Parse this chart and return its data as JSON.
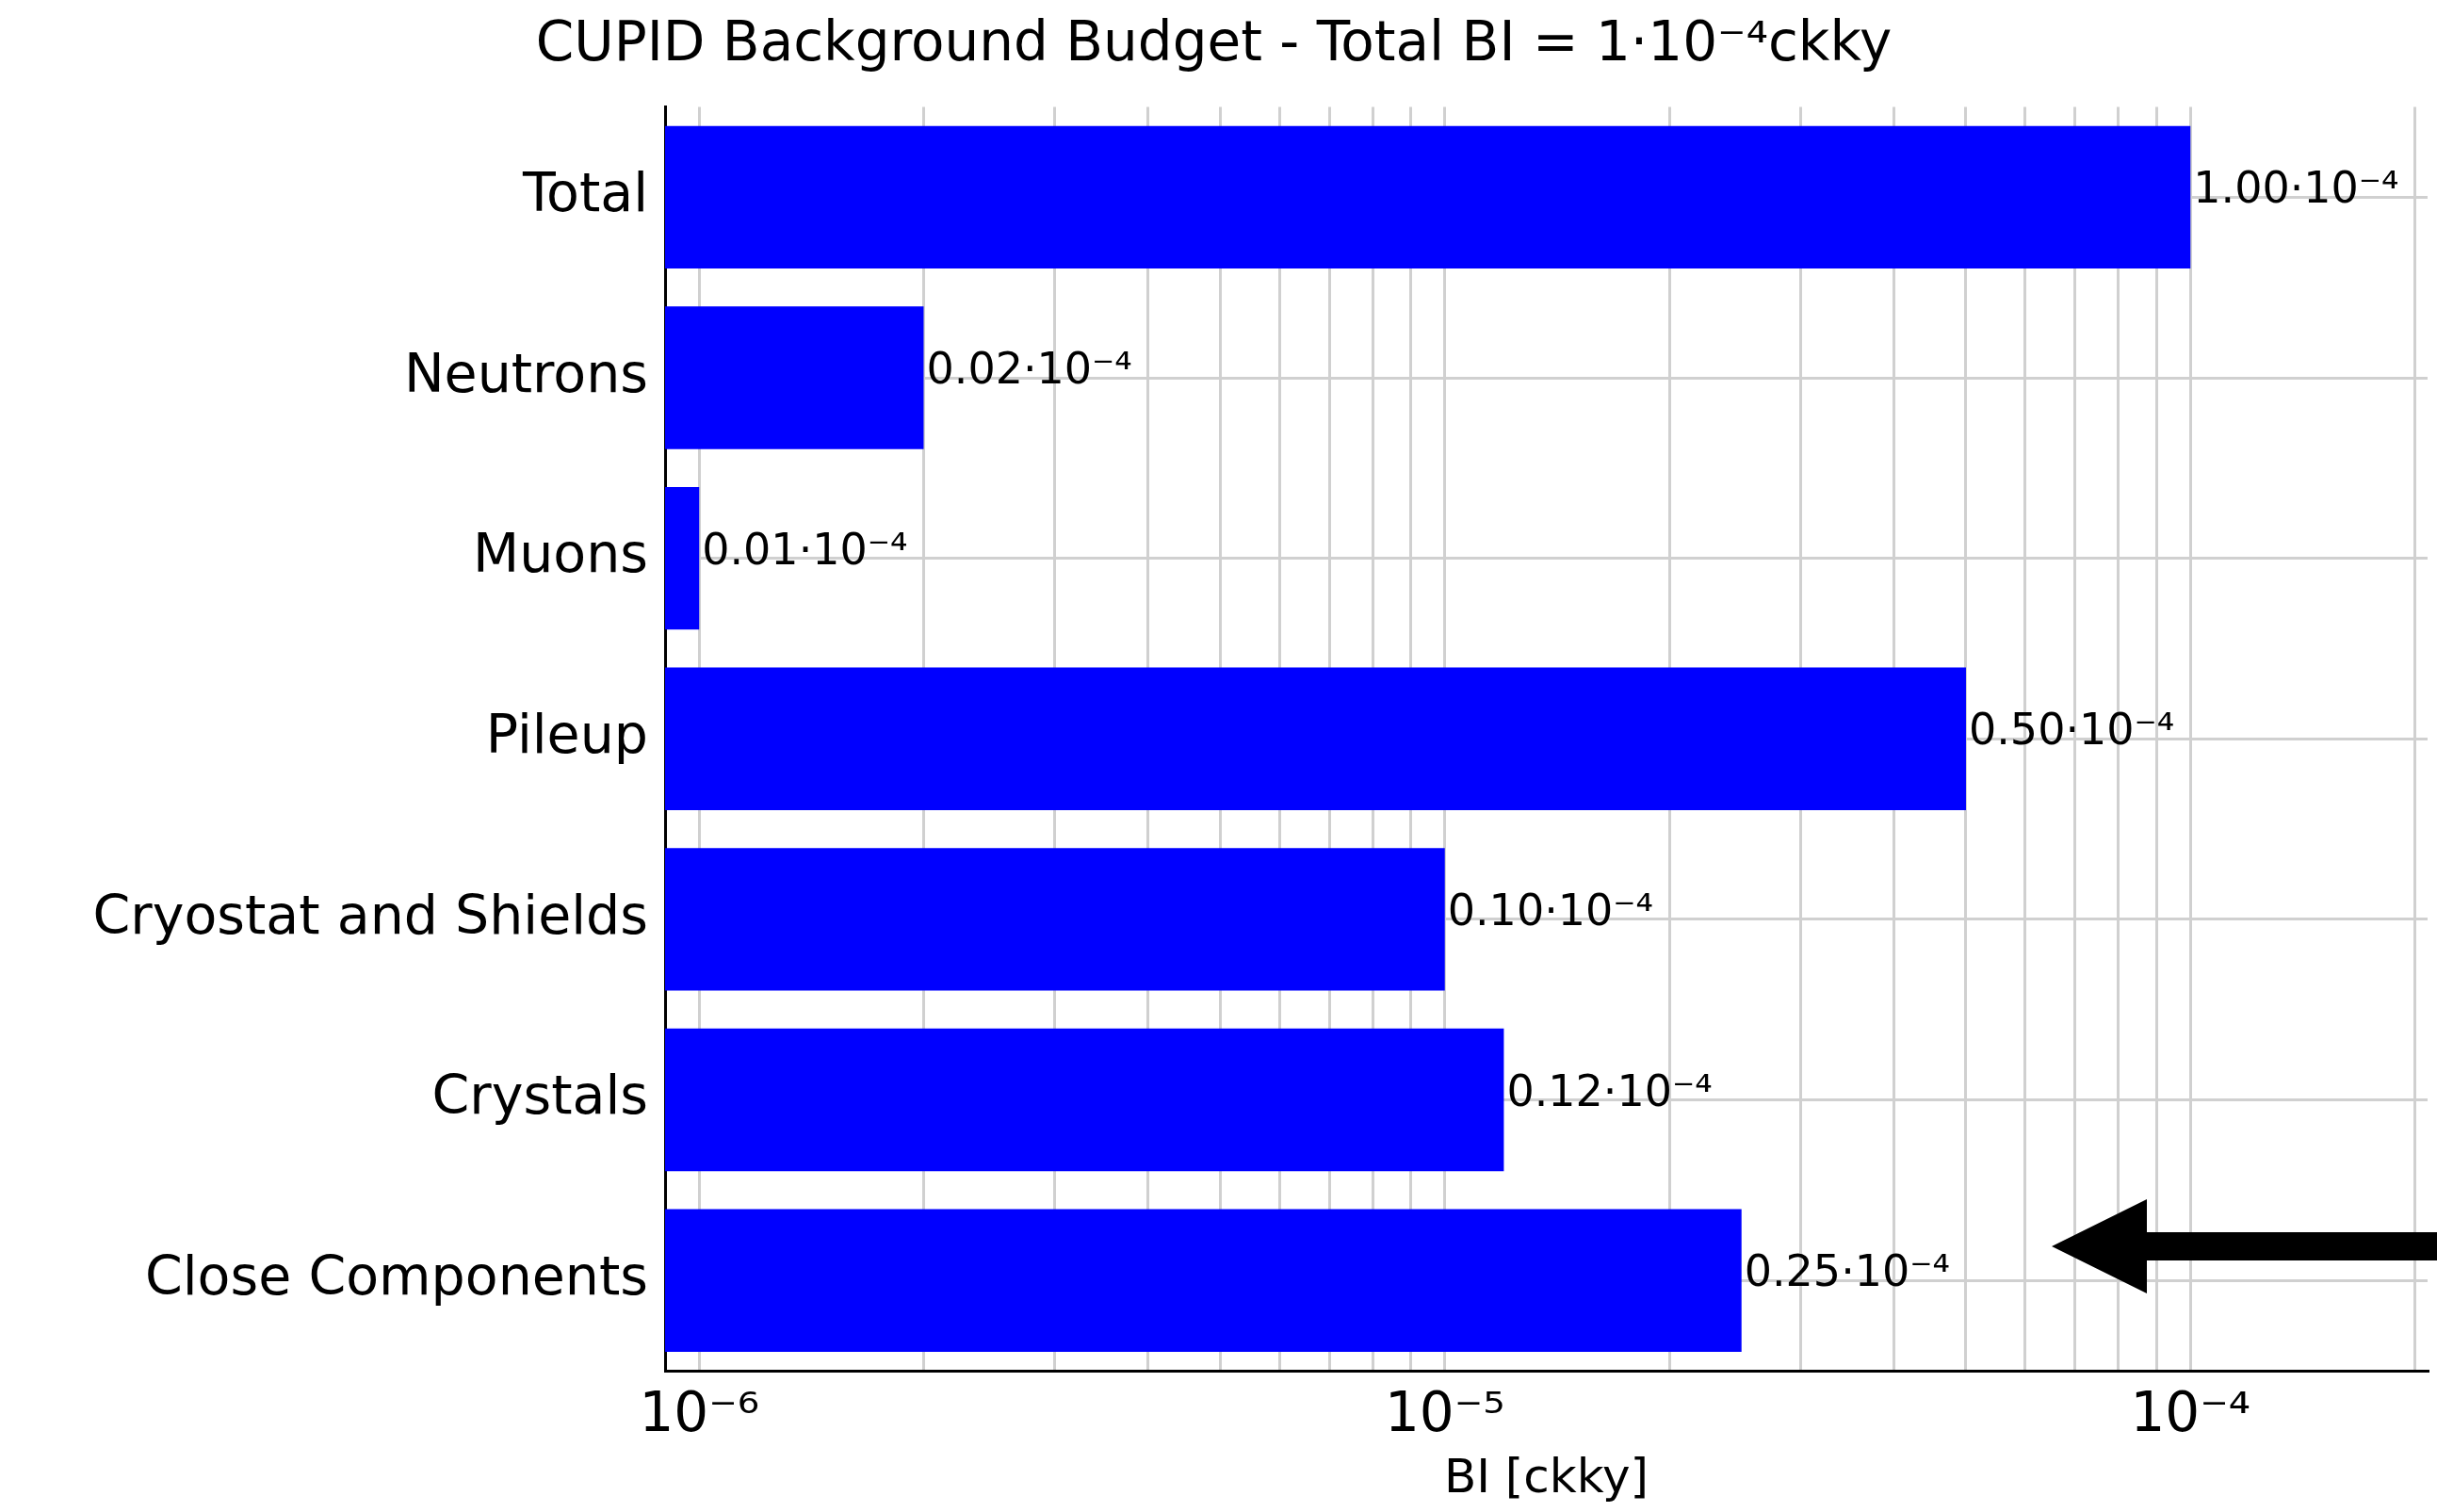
{
  "chart_data": {
    "type": "bar",
    "orientation": "horizontal",
    "title": "CUPID Background Budget - Total BI = 1·10⁻⁴ckky",
    "xlabel": "BI [ckky]",
    "categories": [
      "Total",
      "Neutrons",
      "Muons",
      "Pileup",
      "Cryostat and Shields",
      "Crystals",
      "Close Components"
    ],
    "values": [
      0.0001,
      2e-06,
      1e-06,
      5e-05,
      1e-05,
      1.2e-05,
      2.5e-05
    ],
    "value_labels": [
      "1.00·10⁻⁴",
      "0.02·10⁻⁴",
      "0.01·10⁻⁴",
      "0.50·10⁻⁴",
      "0.10·10⁻⁴",
      "0.12·10⁻⁴",
      "0.25·10⁻⁴"
    ],
    "color": "#0000ff",
    "log": "x",
    "xlim": [
      9e-07,
      0.000208
    ],
    "xticks": [
      {
        "value": 1e-06,
        "label": "10⁻⁶"
      },
      {
        "value": 2e-06,
        "label": null
      },
      {
        "value": 3e-06,
        "label": null
      },
      {
        "value": 4e-06,
        "label": null
      },
      {
        "value": 5e-06,
        "label": null
      },
      {
        "value": 6e-06,
        "label": null
      },
      {
        "value": 7e-06,
        "label": null
      },
      {
        "value": 8e-06,
        "label": null
      },
      {
        "value": 9e-06,
        "label": null
      },
      {
        "value": 1e-05,
        "label": "10⁻⁵"
      },
      {
        "value": 2e-05,
        "label": null
      },
      {
        "value": 3e-05,
        "label": null
      },
      {
        "value": 4e-05,
        "label": null
      },
      {
        "value": 5e-05,
        "label": null
      },
      {
        "value": 6e-05,
        "label": null
      },
      {
        "value": 7e-05,
        "label": null
      },
      {
        "value": 8e-05,
        "label": null
      },
      {
        "value": 9e-05,
        "label": null
      },
      {
        "value": 0.0001,
        "label": "10⁻⁴"
      },
      {
        "value": 0.0002,
        "label": null
      }
    ],
    "grid": true,
    "legend": false
  }
}
